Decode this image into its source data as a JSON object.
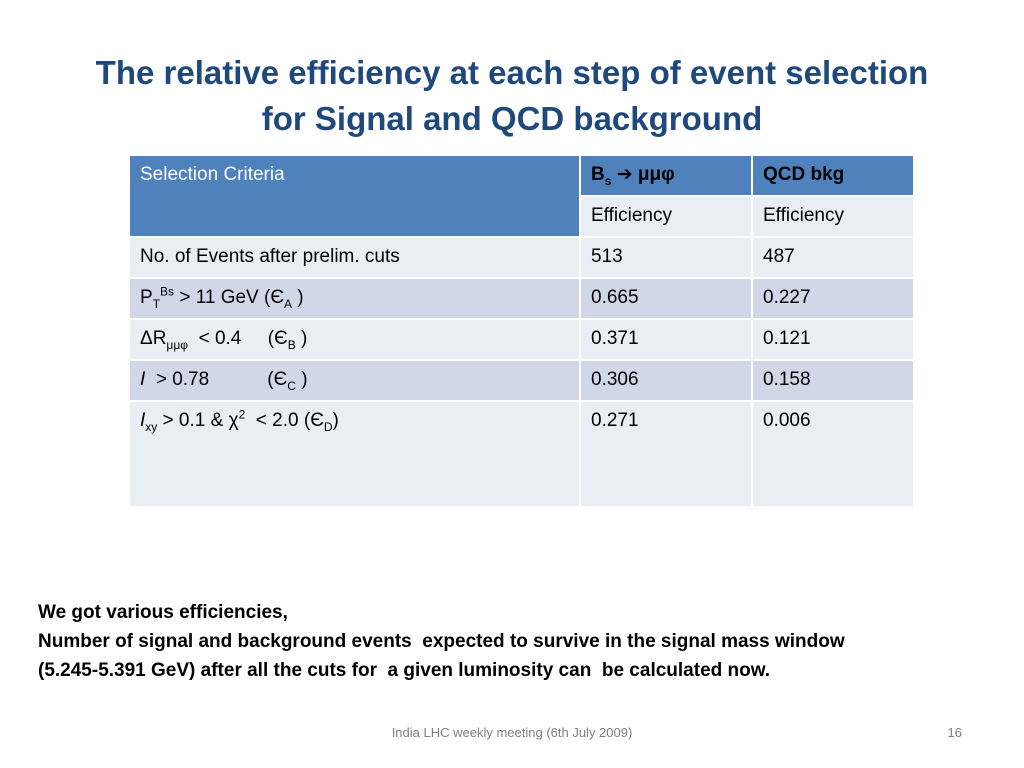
{
  "title": {
    "line1": "The relative efficiency at each step of event selection",
    "line2": "for Signal and QCD background"
  },
  "table": {
    "header": {
      "criteria": "Selection Criteria",
      "signal_B": "B",
      "signal_s": "s",
      "signal_arrow": "➔",
      "signal_final": "μμφ",
      "background": "QCD bkg",
      "sub_signal": "Efficiency",
      "sub_background": "Efficiency"
    },
    "rows": [
      {
        "label": "No. of Events after prelim. cuts",
        "signal": "513",
        "background": "487"
      },
      {
        "signal": "0.665",
        "background": "0.227"
      },
      {
        "signal": "0.371",
        "background": "0.121"
      },
      {
        "signal": "0.306",
        "background": "0.158"
      },
      {
        "signal": "0.271",
        "background": "0.006"
      }
    ],
    "criteria_parts": {
      "pt_P": "P",
      "pt_T": "T",
      "pt_Bs": "Bs",
      "pt_cut": " > 11 GeV  (Є",
      "pt_A": "A",
      "pt_close": " )",
      "dr_delta": "ΔR",
      "dr_sub": "μμφ",
      "dr_cut": "  < 0.4     (Є",
      "dr_B": "B",
      "dr_close": " )",
      "i_I": "I",
      "i_cut": "  > 0.78           (Є",
      "i_C": "C",
      "i_close": " )",
      "ixy_I": "I",
      "ixy_sub": "xy",
      "ixy_cut": " > 0.1 & χ",
      "ixy_sup": "2",
      "ixy_cut2": "  < 2.0 (Є",
      "ixy_D": "D",
      "ixy_close": ")"
    }
  },
  "note": {
    "line1": "We got various efficiencies,",
    "line2": "Number of signal and background events  expected to survive in the signal mass window",
    "line3": "(5.245-5.391 GeV) after all the cuts for  a given luminosity can  be calculated now."
  },
  "footer": "India LHC weekly meeting (6th July 2009)",
  "page_number": "16",
  "colors": {
    "title": "#1f497d",
    "header_bg": "#4f81bd",
    "row_light": "#e9edf4",
    "row_mid": "#d0d8e8"
  }
}
